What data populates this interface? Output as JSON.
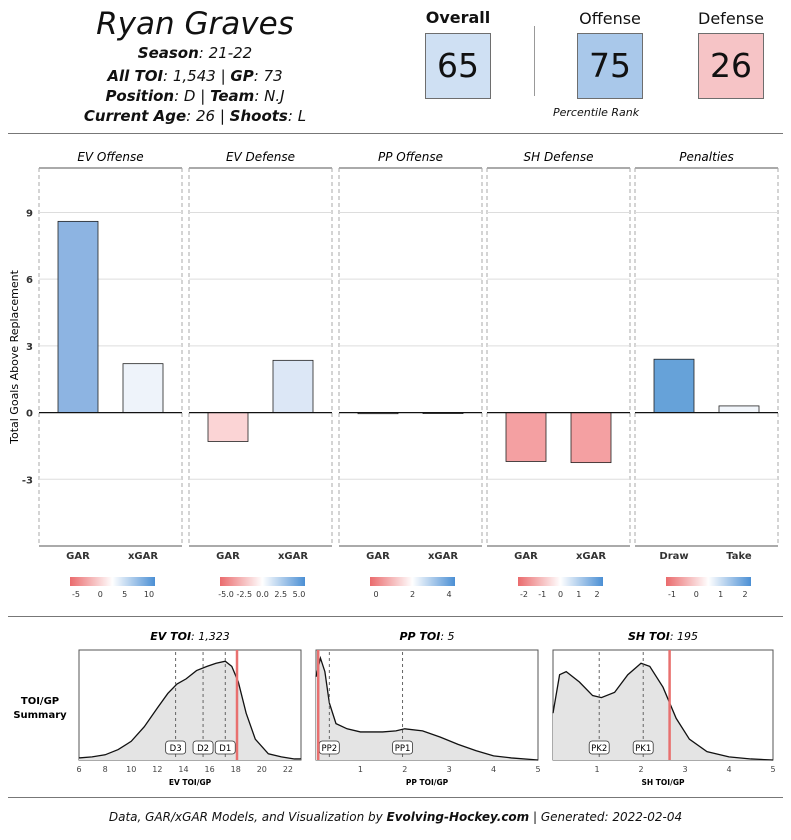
{
  "header": {
    "player_name": "Ryan Graves",
    "season_label": "Season",
    "season_value": ": 21-22",
    "toi_label": "All TOI",
    "toi_value": ": 1,543 | ",
    "gp_label": "GP",
    "gp_value": ": 73",
    "position_label": "Position",
    "position_value": ": D | ",
    "team_label": "Team",
    "team_value": ": N.J",
    "age_label": "Current Age",
    "age_value": ": 26 | ",
    "shoots_label": "Shoots",
    "shoots_value": ": L"
  },
  "ratings": {
    "overall_label": "Overall",
    "overall_value": "65",
    "overall_color": "#cfe0f3",
    "offense_label": "Offense",
    "offense_value": "75",
    "offense_color": "#a9c8ea",
    "defense_label": "Defense",
    "defense_value": "26",
    "defense_color": "#f6c4c6",
    "percentile_label": "Percentile Rank"
  },
  "footer": {
    "prefix": "Data, GAR/xGAR Models, and Visualization by ",
    "brand": "Evolving-Hockey.com",
    "suffix": " | Generated: 2022-02-04"
  },
  "chart_data": [
    {
      "type": "bar",
      "ylabel": "Total Goals Above Replacement",
      "ylim": [
        -6,
        11
      ],
      "yticks": [
        -3,
        0,
        3,
        6,
        9
      ],
      "grid": true,
      "panels": [
        {
          "title": "EV Offense",
          "categories": [
            "GAR",
            "xGAR"
          ],
          "values": [
            8.6,
            2.2
          ],
          "colors": [
            "#8db4e2",
            "#eef3fa"
          ],
          "legend": {
            "ticks": [
              "-5",
              "0",
              "5",
              "10"
            ]
          }
        },
        {
          "title": "EV Defense",
          "categories": [
            "GAR",
            "xGAR"
          ],
          "values": [
            -1.3,
            2.35
          ],
          "colors": [
            "#fbd4d5",
            "#dce7f6"
          ],
          "legend": {
            "ticks": [
              "-5.0",
              "-2.5",
              "0.0",
              "2.5",
              "5.0"
            ]
          }
        },
        {
          "title": "PP Offense",
          "categories": [
            "GAR",
            "xGAR"
          ],
          "values": [
            -0.05,
            0.0
          ],
          "colors": [
            "#fdf5f5",
            "#ffffff"
          ],
          "legend": {
            "ticks": [
              "0",
              "2",
              "4"
            ]
          }
        },
        {
          "title": "SH Defense",
          "categories": [
            "GAR",
            "xGAR"
          ],
          "values": [
            -2.2,
            -2.25
          ],
          "colors": [
            "#f4a0a2",
            "#f4a0a2"
          ],
          "legend": {
            "ticks": [
              "-2",
              "-1",
              "0",
              "1",
              "2"
            ]
          }
        },
        {
          "title": "Penalties",
          "categories": [
            "Draw",
            "Take"
          ],
          "values": [
            2.4,
            0.3
          ],
          "colors": [
            "#66a2d9",
            "#f2f6fb"
          ],
          "legend": {
            "ticks": [
              "-1",
              "0",
              "1",
              "2"
            ]
          }
        }
      ]
    },
    {
      "type": "area",
      "summary_label_1": "TOI/GP",
      "summary_label_2": "Summary",
      "panels": [
        {
          "title_label": "EV TOI",
          "title_value": ": 1,323",
          "xlabel": "EV TOI/GP",
          "xlim": [
            6,
            23
          ],
          "xticks": [
            6,
            8,
            10,
            12,
            14,
            16,
            18,
            20,
            22
          ],
          "curve_x": [
            6,
            7,
            8,
            9,
            10,
            11,
            12,
            12.8,
            13.5,
            14.2,
            15,
            15.8,
            16.5,
            17.2,
            17.7,
            18.2,
            18.8,
            19.5,
            20.5,
            21.5,
            22.5,
            23
          ],
          "curve_y": [
            0.02,
            0.03,
            0.05,
            0.1,
            0.18,
            0.32,
            0.5,
            0.64,
            0.73,
            0.78,
            0.86,
            0.9,
            0.93,
            0.95,
            0.9,
            0.75,
            0.45,
            0.2,
            0.06,
            0.03,
            0.01,
            0.01
          ],
          "markers": [
            {
              "label": "D3",
              "x": 13.4
            },
            {
              "label": "D2",
              "x": 15.5
            },
            {
              "label": "D1",
              "x": 17.2
            }
          ],
          "player_value": 18.1
        },
        {
          "title_label": "PP TOI",
          "title_value": ": 5",
          "xlabel": "PP TOI/GP",
          "xlim": [
            0,
            5
          ],
          "xticks": [
            1,
            2,
            3,
            4,
            5
          ],
          "curve_x": [
            0,
            0.1,
            0.2,
            0.3,
            0.45,
            0.7,
            1.0,
            1.5,
            1.8,
            2.0,
            2.4,
            2.8,
            3.2,
            3.6,
            4.0,
            4.4,
            5.0
          ],
          "curve_y": [
            0.8,
            0.98,
            0.85,
            0.55,
            0.35,
            0.3,
            0.27,
            0.27,
            0.28,
            0.3,
            0.28,
            0.22,
            0.15,
            0.09,
            0.04,
            0.02,
            0.0
          ],
          "markers": [
            {
              "label": "PP2",
              "x": 0.3
            },
            {
              "label": "PP1",
              "x": 1.95
            }
          ],
          "player_value": 0.05
        },
        {
          "title_label": "SH TOI",
          "title_value": ": 195",
          "xlabel": "SH TOI/GP",
          "xlim": [
            0,
            5
          ],
          "xticks": [
            1,
            2,
            3,
            4,
            5
          ],
          "curve_x": [
            0,
            0.15,
            0.3,
            0.6,
            0.9,
            1.1,
            1.4,
            1.7,
            2.0,
            2.2,
            2.5,
            2.8,
            3.1,
            3.5,
            4.0,
            4.5,
            5.0
          ],
          "curve_y": [
            0.45,
            0.82,
            0.85,
            0.75,
            0.62,
            0.6,
            0.65,
            0.82,
            0.93,
            0.9,
            0.7,
            0.4,
            0.2,
            0.08,
            0.03,
            0.01,
            0.0
          ],
          "markers": [
            {
              "label": "PK2",
              "x": 1.05
            },
            {
              "label": "PK1",
              "x": 2.05
            }
          ],
          "player_value": 2.65
        }
      ]
    }
  ]
}
